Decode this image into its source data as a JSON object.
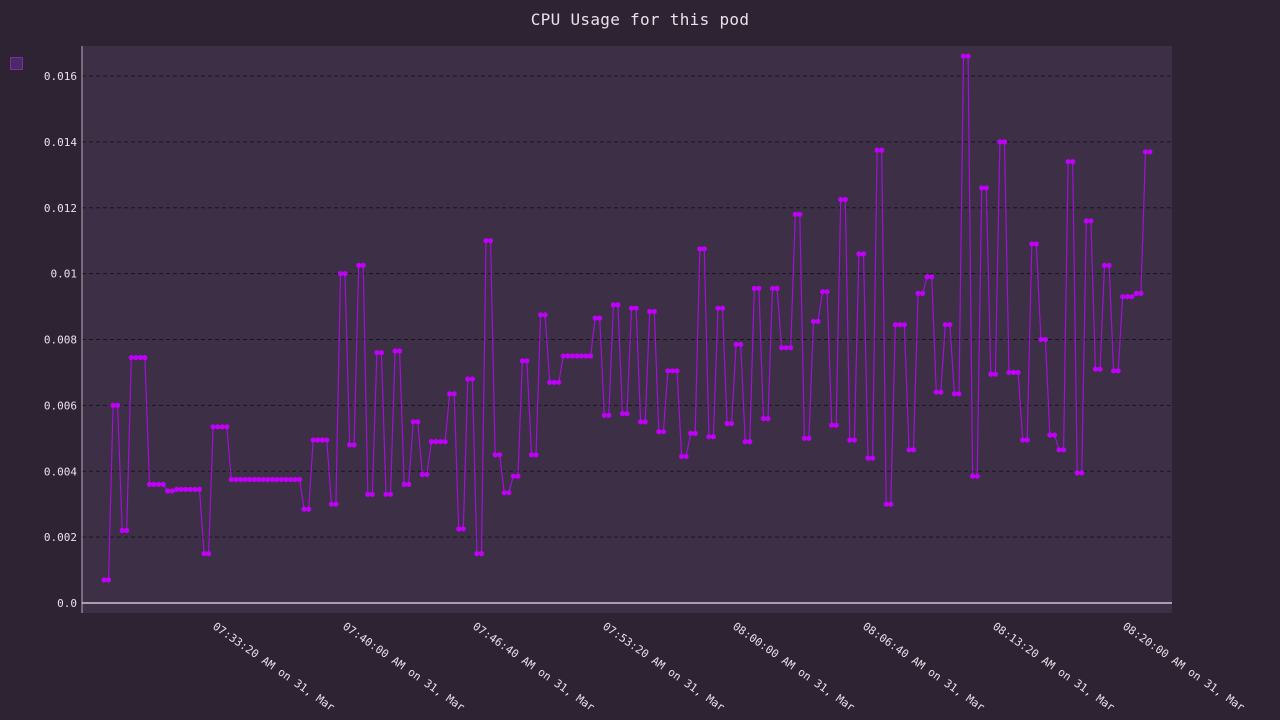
{
  "chart_data": {
    "type": "line",
    "title": "CPU Usage for this pod",
    "xlabel": "",
    "ylabel": "",
    "ylim": [
      0.0,
      0.017
    ],
    "grid": true,
    "legend": "top-left",
    "colors": {
      "background": "#2e2333",
      "plot_area": "#3d2f46",
      "series": "#c000f8",
      "line": "#a010d8",
      "grid": "#1c141f",
      "text": "#e8e2ea"
    },
    "y_ticks": [
      "0.0",
      "0.002",
      "0.004",
      "0.006",
      "0.008",
      "0.01",
      "0.012",
      "0.014",
      "0.016"
    ],
    "y_tick_values": [
      0.0,
      0.002,
      0.004,
      0.006,
      0.008,
      0.01,
      0.012,
      0.014,
      0.016
    ],
    "x_tick_labels": [
      "07:33:20 AM on 31, Mar",
      "07:40:00 AM on 31, Mar",
      "07:46:40 AM on 31, Mar",
      "07:53:20 AM on 31, Mar",
      "08:00:00 AM on 31, Mar",
      "08:06:40 AM on 31, Mar",
      "08:13:20 AM on 31, Mar",
      "08:20:00 AM on 31, Mar"
    ],
    "series": [
      {
        "values": [
          0.0007,
          0.0007,
          0.006,
          0.006,
          0.0022,
          0.0022,
          0.00745,
          0.00745,
          0.00745,
          0.00745,
          0.0036,
          0.0036,
          0.0036,
          0.0036,
          0.0034,
          0.0034,
          0.00345,
          0.00345,
          0.00345,
          0.00345,
          0.00345,
          0.00345,
          0.0015,
          0.0015,
          0.00535,
          0.00535,
          0.00535,
          0.00535,
          0.00375,
          0.00375,
          0.00375,
          0.00375,
          0.00375,
          0.00375,
          0.00375,
          0.00375,
          0.00375,
          0.00375,
          0.00375,
          0.00375,
          0.00375,
          0.00375,
          0.00375,
          0.00375,
          0.00285,
          0.00285,
          0.00495,
          0.00495,
          0.00495,
          0.00495,
          0.003,
          0.003,
          0.01,
          0.01,
          0.0048,
          0.0048,
          0.01025,
          0.01025,
          0.0033,
          0.0033,
          0.0076,
          0.0076,
          0.0033,
          0.0033,
          0.00765,
          0.00765,
          0.0036,
          0.0036,
          0.0055,
          0.0055,
          0.0039,
          0.0039,
          0.0049,
          0.0049,
          0.0049,
          0.0049,
          0.00635,
          0.00635,
          0.00225,
          0.00225,
          0.0068,
          0.0068,
          0.0015,
          0.0015,
          0.011,
          0.011,
          0.0045,
          0.0045,
          0.00335,
          0.00335,
          0.00385,
          0.00385,
          0.00735,
          0.00735,
          0.0045,
          0.0045,
          0.00875,
          0.00875,
          0.0067,
          0.0067,
          0.0067,
          0.0075,
          0.0075,
          0.0075,
          0.0075,
          0.0075,
          0.0075,
          0.0075,
          0.00865,
          0.00865,
          0.0057,
          0.0057,
          0.00905,
          0.00905,
          0.00575,
          0.00575,
          0.00895,
          0.00895,
          0.0055,
          0.0055,
          0.00885,
          0.00885,
          0.0052,
          0.0052,
          0.00705,
          0.00705,
          0.00705,
          0.00445,
          0.00445,
          0.00515,
          0.00515,
          0.01075,
          0.01075,
          0.00505,
          0.00505,
          0.00895,
          0.00895,
          0.00545,
          0.00545,
          0.00785,
          0.00785,
          0.0049,
          0.0049,
          0.00955,
          0.00955,
          0.0056,
          0.0056,
          0.00955,
          0.00955,
          0.00775,
          0.00775,
          0.00775,
          0.0118,
          0.0118,
          0.005,
          0.005,
          0.00855,
          0.00855,
          0.00945,
          0.00945,
          0.0054,
          0.0054,
          0.01225,
          0.01225,
          0.00495,
          0.00495,
          0.0106,
          0.0106,
          0.0044,
          0.0044,
          0.01375,
          0.01375,
          0.003,
          0.003,
          0.00845,
          0.00845,
          0.00845,
          0.00465,
          0.00465,
          0.0094,
          0.0094,
          0.0099,
          0.0099,
          0.0064,
          0.0064,
          0.00845,
          0.00845,
          0.00635,
          0.00635,
          0.0166,
          0.0166,
          0.00385,
          0.00385,
          0.0126,
          0.0126,
          0.00695,
          0.00695,
          0.014,
          0.014,
          0.007,
          0.007,
          0.007,
          0.00495,
          0.00495,
          0.0109,
          0.0109,
          0.008,
          0.008,
          0.0051,
          0.0051,
          0.00465,
          0.00465,
          0.0134,
          0.0134,
          0.00395,
          0.00395,
          0.0116,
          0.0116,
          0.0071,
          0.0071,
          0.01025,
          0.01025,
          0.00705,
          0.00705,
          0.0093,
          0.0093,
          0.0093,
          0.0094,
          0.0094,
          0.0137,
          0.0137
        ]
      }
    ]
  }
}
